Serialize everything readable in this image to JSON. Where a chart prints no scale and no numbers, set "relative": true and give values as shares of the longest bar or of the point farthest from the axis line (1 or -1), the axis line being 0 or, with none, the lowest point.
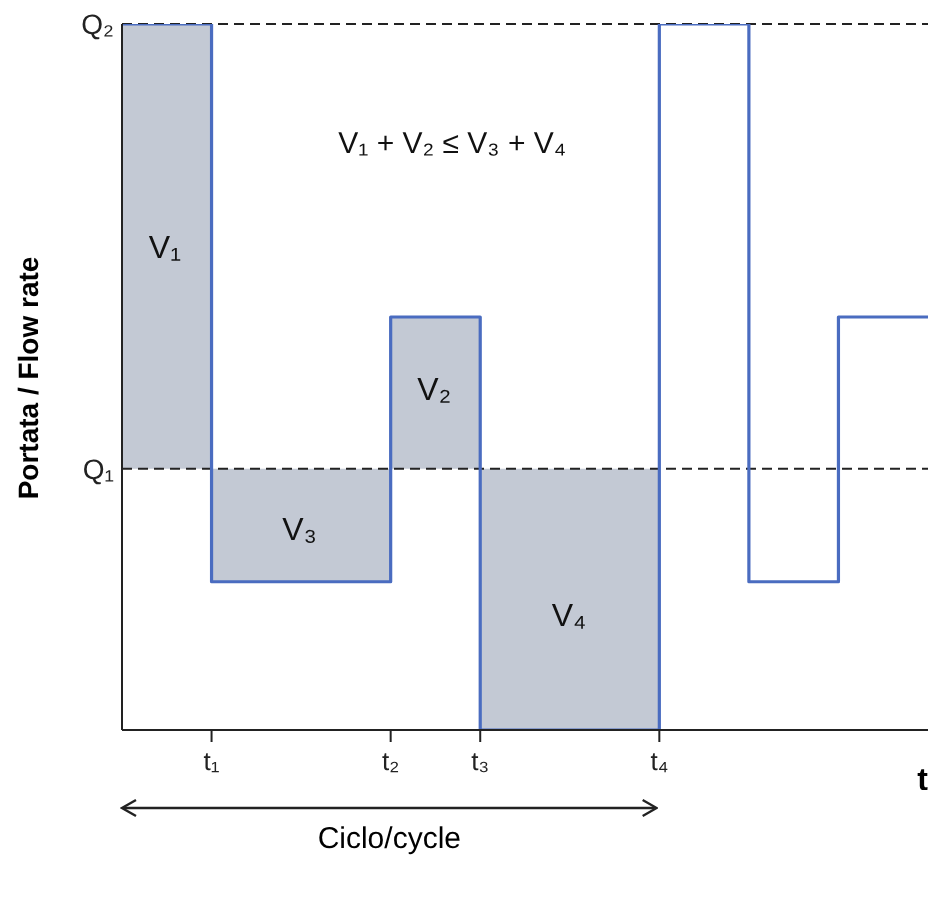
{
  "chart_data": {
    "type": "step",
    "relative": true,
    "xlabel": "t",
    "ylabel": "Portata / Flow rate",
    "marker": "none",
    "line_style": "solid",
    "categories": [
      null,
      null,
      "t₁",
      null,
      null,
      null,
      "t₂",
      null,
      "t₃",
      null,
      null,
      null,
      "t₄",
      null,
      null,
      null,
      null,
      null,
      null
    ],
    "series": [
      {
        "color": "#4a6cc0",
        "values": [
          1,
          1,
          0.21,
          0.21,
          0.21,
          0.21,
          0.585,
          0.585,
          0,
          0,
          0,
          0,
          1,
          1,
          0.21,
          0.21,
          0.585,
          0.585,
          0.585
        ],
        "lower": [
          0.37,
          0.37,
          0.21,
          0.21,
          0.21,
          0.21,
          0.37,
          0.37,
          0,
          0,
          0,
          0,
          0.37,
          null,
          null,
          null,
          null,
          null,
          null
        ],
        "upper": [
          1,
          1,
          0.37,
          0.37,
          0.37,
          0.37,
          0.585,
          0.585,
          0.37,
          0.37,
          0.37,
          0.37,
          0.37,
          null,
          null,
          null,
          null,
          null,
          null
        ]
      }
    ],
    "ref_lines": [
      {
        "axis": "y",
        "value": 1,
        "label": "Q₂",
        "line_style": "dashed",
        "color": "#222222"
      },
      {
        "axis": "y",
        "value": 0.37,
        "label": "Q₁",
        "line_style": "dashed",
        "color": "#222222"
      }
    ],
    "annotations": [
      "V₁ + V₂ ≤ V₃ + V₄",
      "V₁",
      "V₃",
      "V₂",
      "V₄",
      "Ciclo/cycle"
    ]
  }
}
